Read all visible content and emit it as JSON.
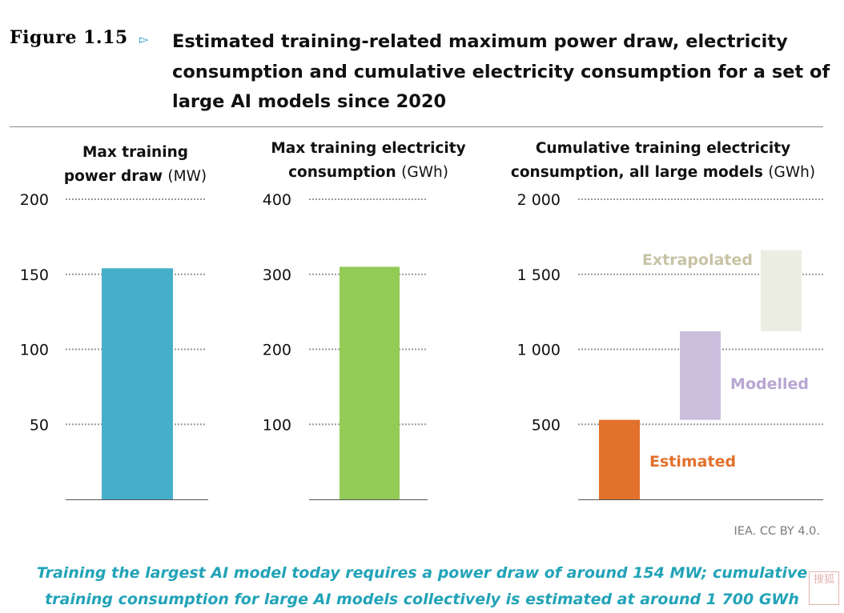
{
  "figure": {
    "label": "Figure 1.15",
    "arrow": "▻",
    "title": "Estimated training-related maximum power draw, electricity consumption and cumulative electricity consumption for a set of large AI models since 2020"
  },
  "panels": [
    {
      "title_bold_1": "Max training",
      "title_bold_2": "power draw",
      "unit": "(MW)"
    },
    {
      "title_bold_1": "Max training electricity",
      "title_bold_2": "consumption",
      "unit": "(GWh)"
    },
    {
      "title_bold_1": "Cumulative training electricity",
      "title_bold_2": "consumption, all large models",
      "unit": "(GWh)"
    }
  ],
  "chart_data": [
    {
      "type": "bar",
      "title": "Max training power draw (MW)",
      "ylim": [
        0,
        200
      ],
      "ticks": [
        50,
        100,
        150,
        200
      ],
      "tick_labels": [
        "50",
        "100",
        "150",
        "200"
      ],
      "values": [
        154
      ],
      "colors": [
        "#45afca"
      ]
    },
    {
      "type": "bar",
      "title": "Max training electricity consumption (GWh)",
      "ylim": [
        0,
        400
      ],
      "ticks": [
        100,
        200,
        300,
        400
      ],
      "tick_labels": [
        "100",
        "200",
        "300",
        "400"
      ],
      "values": [
        310
      ],
      "colors": [
        "#92cb55"
      ]
    },
    {
      "type": "bar",
      "subtype": "waterfall",
      "title": "Cumulative training electricity consumption, all large models (GWh)",
      "ylim": [
        0,
        2000
      ],
      "ticks": [
        500,
        1000,
        1500,
        2000
      ],
      "tick_labels": [
        "500",
        "1 000",
        "1 500",
        "2 000"
      ],
      "segments": [
        {
          "name": "Estimated",
          "start": 0,
          "end": 530,
          "color": "#e2712c",
          "label_color": "#e2712c"
        },
        {
          "name": "Modelled",
          "start": 530,
          "end": 1120,
          "color": "#cbbfdd",
          "label_color": "#b8a6d3"
        },
        {
          "name": "Extrapolated",
          "start": 1120,
          "end": 1660,
          "color": "#eceee3",
          "label_color": "#c7c3a5"
        }
      ]
    }
  ],
  "source": "IEA. CC BY 4.0.",
  "caption_line1": "Training the largest AI model today requires a power draw of around 154 MW; cumulative",
  "caption_line2": "training consumption for large AI models collectively is estimated at around 1 700 GWh",
  "watermark": "搜狐"
}
